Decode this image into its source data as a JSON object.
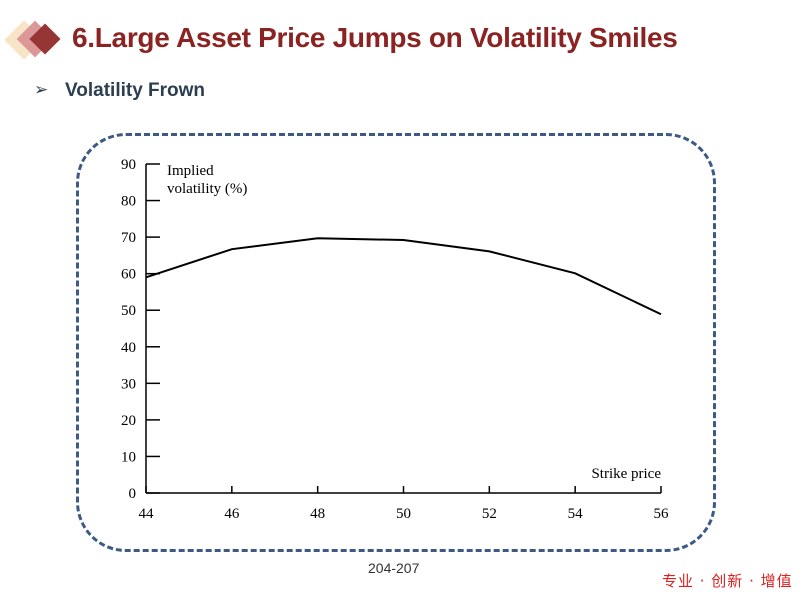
{
  "slide": {
    "title": "6.Large Asset Price Jumps on Volatility Smiles",
    "subtitle": "Volatility Frown",
    "bullet_icon": "arrowhead-bullet-icon",
    "reference": "204-207",
    "slogan": "专业 · 创新 · 增值",
    "colors": {
      "title": "#8b2323",
      "frame": "#3c5a85",
      "slogan": "#e02020"
    }
  },
  "chart_data": {
    "type": "line",
    "ylabel_line1": "Implied",
    "ylabel_line2": "volatility (%)",
    "xlabel": "Strike price",
    "xlim": [
      44,
      56
    ],
    "ylim": [
      0,
      90
    ],
    "xticks": [
      44,
      46,
      48,
      50,
      52,
      54,
      56
    ],
    "yticks": [
      0,
      10,
      20,
      30,
      40,
      50,
      60,
      70,
      80,
      90
    ],
    "grid": false,
    "x": [
      44,
      46,
      48,
      50,
      52,
      54,
      56
    ],
    "y": [
      59,
      66.7,
      69.7,
      69.2,
      66.1,
      60.1,
      48.9
    ]
  }
}
